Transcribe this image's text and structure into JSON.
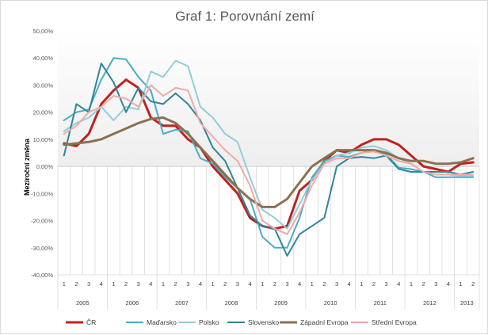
{
  "chart_data": {
    "type": "line",
    "title": "Graf 1: Porovnání zemí",
    "ylabel": "Meziroční změna",
    "xlabel": "",
    "ylim": [
      -40,
      50
    ],
    "yticks": [
      -40,
      -30,
      -20,
      -10,
      0,
      10,
      20,
      30,
      40,
      50
    ],
    "ytick_labels": [
      "-40,00%",
      "-30,00%",
      "-20,00%",
      "-10,00%",
      "0,00%",
      "10,00%",
      "20,00%",
      "30,00%",
      "40,00%",
      "50,00%"
    ],
    "quarters": [
      "1",
      "2",
      "3",
      "4",
      "1",
      "2",
      "3",
      "4",
      "1",
      "2",
      "3",
      "4",
      "1",
      "2",
      "3",
      "4",
      "1",
      "2",
      "3",
      "4",
      "1",
      "2",
      "3",
      "4",
      "1",
      "2",
      "3",
      "4",
      "1",
      "2",
      "3",
      "4",
      "1",
      "2"
    ],
    "years": [
      {
        "label": "2005",
        "span": 4
      },
      {
        "label": "2006",
        "span": 4
      },
      {
        "label": "2007",
        "span": 4
      },
      {
        "label": "2008",
        "span": 4
      },
      {
        "label": "2009",
        "span": 4
      },
      {
        "label": "2010",
        "span": 4
      },
      {
        "label": "2011",
        "span": 4
      },
      {
        "label": "2012",
        "span": 4
      },
      {
        "label": "2013",
        "span": 2
      }
    ],
    "grid": "vertical-below-zero",
    "legend_position": "bottom",
    "series": [
      {
        "name": "ČR",
        "color": "#c0221f",
        "width": 3,
        "values": [
          8.5,
          7.5,
          12,
          23,
          28,
          32,
          29,
          18,
          15,
          15,
          10,
          7,
          0,
          -5,
          -10,
          -19,
          -22,
          -23,
          -22,
          -9,
          -5,
          2,
          6,
          5,
          8,
          10,
          10,
          8,
          4,
          0,
          -1,
          -2,
          1,
          1.5
        ]
      },
      {
        "name": "Maďarsko",
        "color": "#4bacc6",
        "width": 2,
        "values": [
          17,
          20,
          21,
          32,
          40,
          39.5,
          33,
          28,
          12,
          13.5,
          13,
          3,
          1,
          -4,
          -8,
          -12,
          -26,
          -30,
          -30,
          -19,
          -4,
          2,
          4,
          3.5,
          5,
          6,
          4.5,
          -0.5,
          -1,
          -2,
          -4,
          -4,
          -4,
          -4
        ]
      },
      {
        "name": "Polsko",
        "color": "#92cddc",
        "width": 2,
        "values": [
          13,
          16,
          18,
          22,
          17,
          22,
          21,
          35,
          33,
          39,
          37,
          22,
          18,
          12,
          9,
          -4,
          -16,
          -19,
          -23,
          -14,
          -5,
          1,
          4,
          5,
          7,
          7.5,
          6,
          3,
          1,
          -2,
          -3,
          -3,
          -3.5,
          -3.5
        ]
      },
      {
        "name": "Slovensko",
        "color": "#31859c",
        "width": 2,
        "values": [
          4,
          23,
          20,
          38,
          31,
          20,
          29,
          24,
          23,
          27,
          23,
          17,
          7,
          2,
          -8,
          -18,
          -22,
          -23,
          -33,
          -25,
          -22,
          -19,
          0,
          3,
          3.5,
          3,
          4,
          -1,
          -2,
          -2,
          -2,
          -2,
          -3,
          -2
        ]
      },
      {
        "name": "Západní Evropa",
        "color": "#8b7150",
        "width": 3,
        "values": [
          8,
          8.5,
          9,
          10,
          12,
          14,
          16,
          17.5,
          18,
          16,
          12,
          7,
          2,
          -3,
          -8,
          -12,
          -15,
          -15,
          -12,
          -6,
          0,
          3,
          6,
          6,
          6,
          6,
          5,
          3,
          2,
          2,
          1,
          1,
          1.5,
          3
        ]
      },
      {
        "name": "Střední Evropa",
        "color": "#f2a9a6",
        "width": 2,
        "values": [
          12,
          15,
          20,
          22,
          26,
          25,
          22,
          30,
          26,
          29,
          28,
          16,
          11,
          6,
          2,
          -7,
          -20,
          -23,
          -25,
          -17,
          -7,
          1,
          3,
          3,
          5,
          5.5,
          4,
          2,
          1,
          -2,
          -3,
          -3,
          -3,
          -3
        ]
      }
    ]
  }
}
